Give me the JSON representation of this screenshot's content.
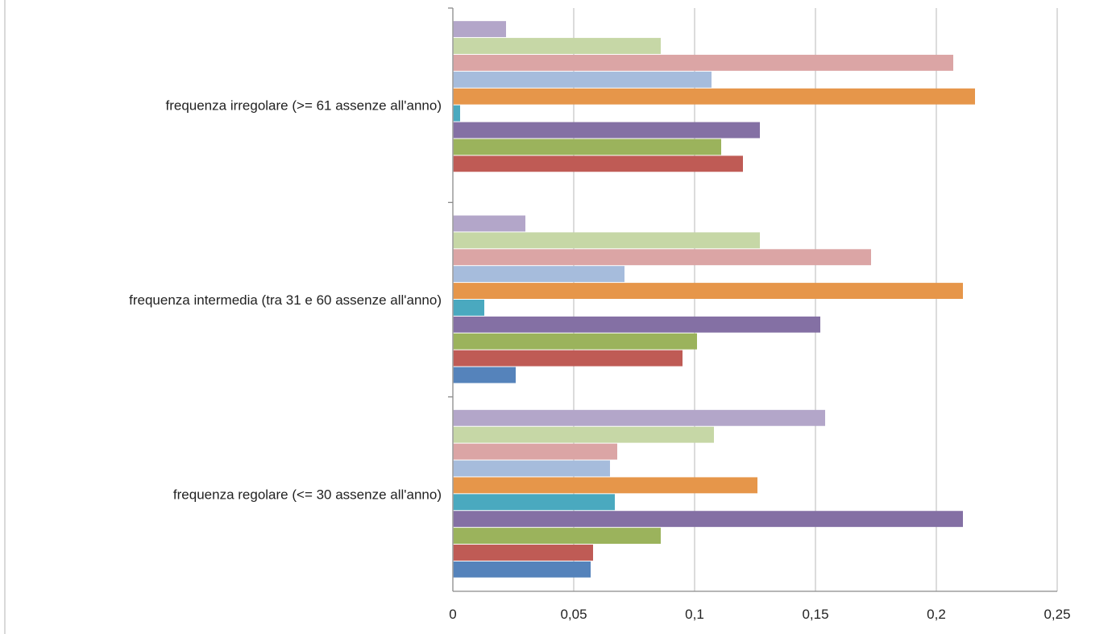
{
  "chart_data": {
    "type": "bar",
    "orientation": "horizontal",
    "title": "",
    "xlabel": "",
    "ylabel": "",
    "xlim": [
      0,
      0.25
    ],
    "xticks": [
      0,
      0.05,
      0.1,
      0.15,
      0.2,
      0.25
    ],
    "xtick_labels": [
      "0",
      "0,05",
      "0,1",
      "0,15",
      "0,2",
      "0,25"
    ],
    "grid": "vertical",
    "legend": "none",
    "categories": [
      "frequenza irregolare (>= 61 assenze all'anno)",
      "frequenza intermedia (tra 31 e 60 assenze all'anno)",
      "frequenza regolare (<= 30 assenze all'anno)"
    ],
    "series": [
      {
        "color": "#b3a6c9",
        "values": [
          0.022,
          0.03,
          0.154
        ]
      },
      {
        "color": "#c6d7a6",
        "values": [
          0.086,
          0.127,
          0.108
        ]
      },
      {
        "color": "#dba5a5",
        "values": [
          0.207,
          0.173,
          0.068
        ]
      },
      {
        "color": "#a6bcdc",
        "values": [
          0.107,
          0.071,
          0.065
        ]
      },
      {
        "color": "#e6964a",
        "values": [
          0.216,
          0.211,
          0.126
        ]
      },
      {
        "color": "#4aa9bf",
        "values": [
          0.003,
          0.013,
          0.067
        ]
      },
      {
        "color": "#8470a4",
        "values": [
          0.127,
          0.152,
          0.211
        ]
      },
      {
        "color": "#9bb35c",
        "values": [
          0.111,
          0.101,
          0.086
        ]
      },
      {
        "color": "#bf5b55",
        "values": [
          0.12,
          0.095,
          0.058
        ]
      },
      {
        "color": "#5583bb",
        "values": [
          0,
          0.026,
          0.057
        ]
      }
    ]
  }
}
